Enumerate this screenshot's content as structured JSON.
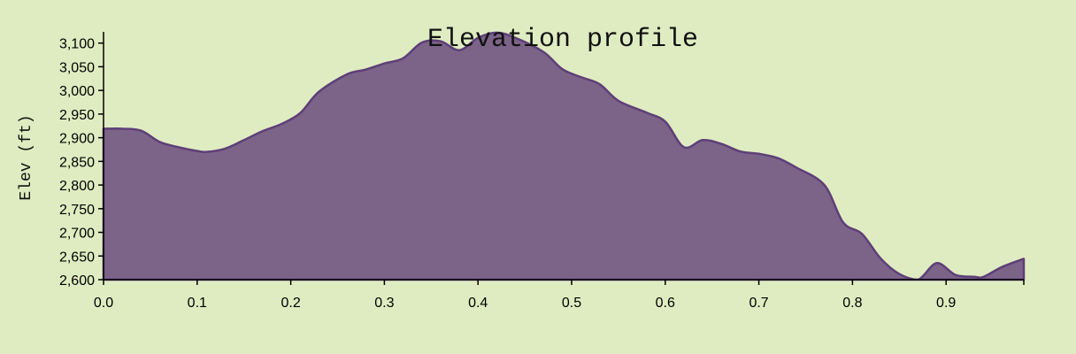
{
  "chart_data": {
    "type": "area",
    "title": "Elevation profile",
    "xlabel": "",
    "ylabel": "Elev (ft)",
    "xlim": [
      0,
      0.983
    ],
    "ylim": [
      2600,
      3120
    ],
    "x_ticks": [
      0.0,
      0.1,
      0.2,
      0.3,
      0.4,
      0.5,
      0.6,
      0.7,
      0.8,
      0.9
    ],
    "x_tick_labels": [
      "0.0",
      "0.1",
      "0.2",
      "0.3",
      "0.4",
      "0.5",
      "0.6",
      "0.7",
      "0.8",
      "0.9"
    ],
    "y_ticks": [
      2600,
      2650,
      2700,
      2750,
      2800,
      2850,
      2900,
      2950,
      3000,
      3050,
      3100
    ],
    "y_tick_labels": [
      "2,600",
      "2,650",
      "2,700",
      "2,750",
      "2,800",
      "2,850",
      "2,900",
      "2,950",
      "3,000",
      "3,050",
      "3,100"
    ],
    "grid": false,
    "fill_color": "#7c6489",
    "line_color": "#5e3f78",
    "background_color": "#dfecc1",
    "x": [
      0.0,
      0.02,
      0.04,
      0.06,
      0.08,
      0.1,
      0.11,
      0.13,
      0.15,
      0.17,
      0.19,
      0.21,
      0.23,
      0.26,
      0.28,
      0.3,
      0.32,
      0.34,
      0.36,
      0.38,
      0.4,
      0.42,
      0.44,
      0.47,
      0.49,
      0.51,
      0.53,
      0.55,
      0.58,
      0.6,
      0.62,
      0.64,
      0.66,
      0.68,
      0.7,
      0.72,
      0.74,
      0.77,
      0.79,
      0.81,
      0.83,
      0.85,
      0.87,
      0.89,
      0.91,
      0.93,
      0.94,
      0.96,
      0.983
    ],
    "values": [
      2919,
      2919,
      2915,
      2891,
      2880,
      2872,
      2870,
      2877,
      2895,
      2914,
      2929,
      2952,
      2997,
      3034,
      3044,
      3057,
      3068,
      3101,
      3104,
      3085,
      3111,
      3122,
      3111,
      3081,
      3045,
      3028,
      3013,
      2978,
      2953,
      2934,
      2880,
      2895,
      2887,
      2871,
      2866,
      2857,
      2837,
      2800,
      2721,
      2697,
      2645,
      2612,
      2600,
      2635,
      2610,
      2606,
      2606,
      2627,
      2644
    ]
  }
}
